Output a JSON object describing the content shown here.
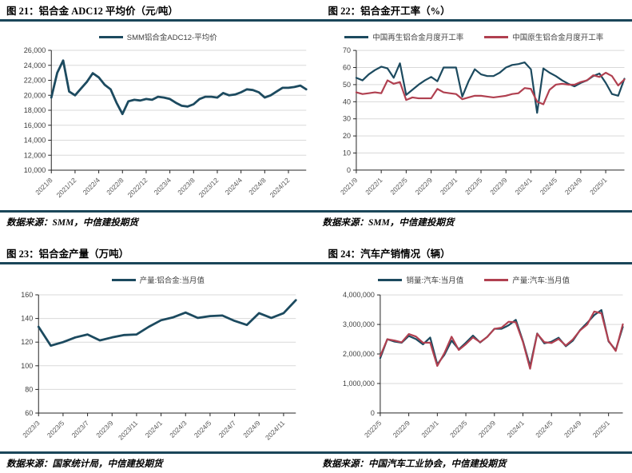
{
  "panels": [
    {
      "title": "图 21：铝合金 ADC12 平均价（元/吨）",
      "source": "数据来源：SMM，中信建投期货"
    },
    {
      "title": "图 22：铝合金开工率（%）",
      "source": "数据来源：SMM，中信建投期货"
    },
    {
      "title": "图 23：铝合金产量（万吨）",
      "source": "数据来源：国家统计局，中信建投期货"
    },
    {
      "title": "图 24：汽车产销情况（辆）",
      "source": "数据来源：中国汽车工业协会，中信建投期货"
    }
  ],
  "colors": {
    "blue": "#1c4a5f",
    "red": "#b04050",
    "rule": "#1a4659",
    "grid": "#d9d9d9",
    "axis": "#262626",
    "xtick": "#595959",
    "ytick": "#3f3f3f"
  },
  "chart_data": [
    {
      "type": "line",
      "title": "铝合金 ADC12 平均价（元/吨）",
      "ylim": [
        10000,
        26000
      ],
      "y_step": 2000,
      "y_format": "comma",
      "grid": true,
      "legend_position": "top",
      "layout": {
        "margins": {
          "l": 64,
          "r": 12,
          "t": 6,
          "b": 50
        },
        "lw": 2.8,
        "yfs": 9
      },
      "x": [
        "2021/8",
        "2021/9",
        "2021/10",
        "2021/11",
        "2021/12",
        "2022/1",
        "2022/2",
        "2022/3",
        "2022/4",
        "2022/5",
        "2022/6",
        "2022/7",
        "2022/8",
        "2022/9",
        "2022/10",
        "2022/11",
        "2022/12",
        "2023/1",
        "2023/2",
        "2023/3",
        "2023/4",
        "2023/5",
        "2023/6",
        "2023/7",
        "2023/8",
        "2023/9",
        "2023/10",
        "2023/11",
        "2023/12",
        "2024/1",
        "2024/2",
        "2024/3",
        "2024/4",
        "2024/5",
        "2024/6",
        "2024/7",
        "2024/8",
        "2024/9",
        "2024/10",
        "2024/11",
        "2024/12",
        "2025/1",
        "2025/2",
        "2025/3"
      ],
      "x_tick_indices": [
        0,
        4,
        8,
        12,
        16,
        20,
        24,
        28,
        32,
        36,
        40
      ],
      "series": [
        {
          "name": "SMM铝合金ADC12-平均价",
          "color": "#1c4a5f",
          "values": [
            19700,
            23000,
            24650,
            20500,
            20000,
            20900,
            21800,
            22950,
            22400,
            21400,
            20800,
            19000,
            17500,
            19200,
            19400,
            19300,
            19500,
            19400,
            19800,
            19700,
            19500,
            19000,
            18600,
            18500,
            18800,
            19500,
            19800,
            19800,
            19700,
            20300,
            20000,
            20100,
            20400,
            20800,
            20700,
            20400,
            19700,
            20000,
            20500,
            21000,
            21000,
            21100,
            21300,
            20800
          ]
        }
      ]
    },
    {
      "type": "line",
      "title": "铝合金开工率（%）",
      "ylim": [
        0,
        70
      ],
      "y_step": 10,
      "y_format": "plain",
      "grid": true,
      "legend_position": "top",
      "layout": {
        "margins": {
          "l": 50,
          "r": 10,
          "t": 6,
          "b": 50
        },
        "lw": 2.2,
        "yfs": 9
      },
      "x": [
        "2021/9",
        "2021/10",
        "2021/11",
        "2021/12",
        "2022/1",
        "2022/2",
        "2022/3",
        "2022/4",
        "2022/5",
        "2022/6",
        "2022/7",
        "2022/8",
        "2022/9",
        "2022/10",
        "2022/11",
        "2022/12",
        "2023/1",
        "2023/2",
        "2023/3",
        "2023/4",
        "2023/5",
        "2023/6",
        "2023/7",
        "2023/8",
        "2023/9",
        "2023/10",
        "2023/11",
        "2023/12",
        "2024/1",
        "2024/2",
        "2024/3",
        "2024/4",
        "2024/5",
        "2024/6",
        "2024/7",
        "2024/8",
        "2024/9",
        "2024/10",
        "2024/11",
        "2024/12",
        "2025/1",
        "2025/2",
        "2025/3",
        "2025/4"
      ],
      "x_tick_indices": [
        0,
        4,
        8,
        12,
        16,
        20,
        24,
        28,
        32,
        36,
        40
      ],
      "series": [
        {
          "name": "中国再生铝合金月度开工率",
          "color": "#1c4a5f",
          "values": [
            54,
            52.5,
            56,
            58.5,
            60.5,
            59.5,
            54,
            62.5,
            44,
            47,
            50,
            52.5,
            54.5,
            52,
            60,
            60,
            60,
            43,
            52,
            59,
            56,
            55,
            55,
            57,
            60,
            61.5,
            62,
            63,
            59,
            33.5,
            59.5,
            57,
            55,
            52.5,
            50.5,
            49,
            51,
            52.5,
            55,
            56.5,
            51,
            44.5,
            43.5,
            53.5
          ]
        },
        {
          "name": "中国原生铝合金月度开工率",
          "color": "#b04050",
          "values": [
            45.5,
            44.5,
            45,
            45.5,
            45,
            52.5,
            50.5,
            51.5,
            41,
            42.5,
            42,
            42,
            42,
            47.5,
            45.5,
            45,
            44.5,
            41.5,
            42.5,
            43.5,
            43.5,
            43,
            42.5,
            43,
            43.5,
            44.5,
            45,
            48,
            47.5,
            40,
            38.5,
            47,
            50,
            50.5,
            50,
            50,
            51.5,
            52.5,
            55.5,
            54.5,
            57,
            55,
            49.5,
            53
          ]
        }
      ]
    },
    {
      "type": "line",
      "title": "铝合金产量（万吨）",
      "ylim": [
        60,
        160
      ],
      "y_step": 20,
      "y_format": "plain",
      "grid": true,
      "legend_position": "top",
      "layout": {
        "margins": {
          "l": 48,
          "r": 25,
          "t": 8,
          "b": 48
        },
        "lw": 2.8,
        "yfs": 9
      },
      "x": [
        "2023/3",
        "2023/4",
        "2023/5",
        "2023/6",
        "2023/7",
        "2023/8",
        "2023/9",
        "2023/10",
        "2023/11",
        "2023/12",
        "2024/1",
        "2024/2",
        "2024/3",
        "2024/4",
        "2024/5",
        "2024/6",
        "2024/7",
        "2024/8",
        "2024/9",
        "2024/10",
        "2024/11",
        "2024/12"
      ],
      "x_tick_indices": [
        0,
        2,
        4,
        6,
        8,
        10,
        12,
        14,
        16,
        18,
        20
      ],
      "series": [
        {
          "name": "产量:铝合金:当月值",
          "color": "#1c4a5f",
          "values": [
            133,
            117,
            120,
            124,
            126.5,
            121.5,
            124,
            126,
            126.5,
            133,
            138.5,
            141,
            145,
            140.5,
            142,
            142.5,
            138,
            134.5,
            144.5,
            140.5,
            144.5,
            155.5
          ]
        }
      ]
    },
    {
      "type": "line",
      "title": "汽车产销情况（辆）",
      "ylim": [
        0,
        4000000
      ],
      "y_step": 1000000,
      "y_format": "comma",
      "grid": true,
      "legend_position": "top",
      "layout": {
        "margins": {
          "l": 80,
          "r": 12,
          "t": 8,
          "b": 48
        },
        "lw": 2.2,
        "yfs": 9
      },
      "x": [
        "2022/5",
        "2022/6",
        "2022/7",
        "2022/8",
        "2022/9",
        "2022/10",
        "2022/11",
        "2022/12",
        "2023/1",
        "2023/2",
        "2023/3",
        "2023/4",
        "2023/5",
        "2023/6",
        "2023/7",
        "2023/8",
        "2023/9",
        "2023/10",
        "2023/11",
        "2023/12",
        "2024/1",
        "2024/2",
        "2024/3",
        "2024/4",
        "2024/5",
        "2024/6",
        "2024/7",
        "2024/8",
        "2024/9",
        "2024/10",
        "2024/11",
        "2024/12",
        "2025/1",
        "2025/2",
        "2025/3"
      ],
      "x_tick_indices": [
        0,
        4,
        8,
        12,
        16,
        20,
        24,
        28,
        32
      ],
      "series": [
        {
          "name": "销量:汽车:当月值",
          "color": "#1c4a5f",
          "values": [
            1860000,
            2500000,
            2420000,
            2380000,
            2610000,
            2505000,
            2326000,
            2558000,
            1649000,
            1976000,
            2452000,
            2159000,
            2382000,
            2622000,
            2389000,
            2580000,
            2854000,
            2850000,
            2970000,
            3156000,
            2439000,
            1585000,
            2694000,
            2359000,
            2417000,
            2552000,
            2262000,
            2452000,
            2809000,
            3053000,
            3316000,
            3489000,
            2426000,
            2129000,
            2915000
          ]
        },
        {
          "name": "产量:汽车:当月值",
          "color": "#b04050",
          "values": [
            1930000,
            2499000,
            2455000,
            2395000,
            2676000,
            2593000,
            2382000,
            2383000,
            1594000,
            2032000,
            2583000,
            2134000,
            2333000,
            2561000,
            2401000,
            2575000,
            2851000,
            2891000,
            3093000,
            3072000,
            2411000,
            1501000,
            2687000,
            2401000,
            2372000,
            2507000,
            2286000,
            2491000,
            2796000,
            2996000,
            3437000,
            3379000,
            2445000,
            2103000,
            3006000
          ]
        }
      ]
    }
  ]
}
